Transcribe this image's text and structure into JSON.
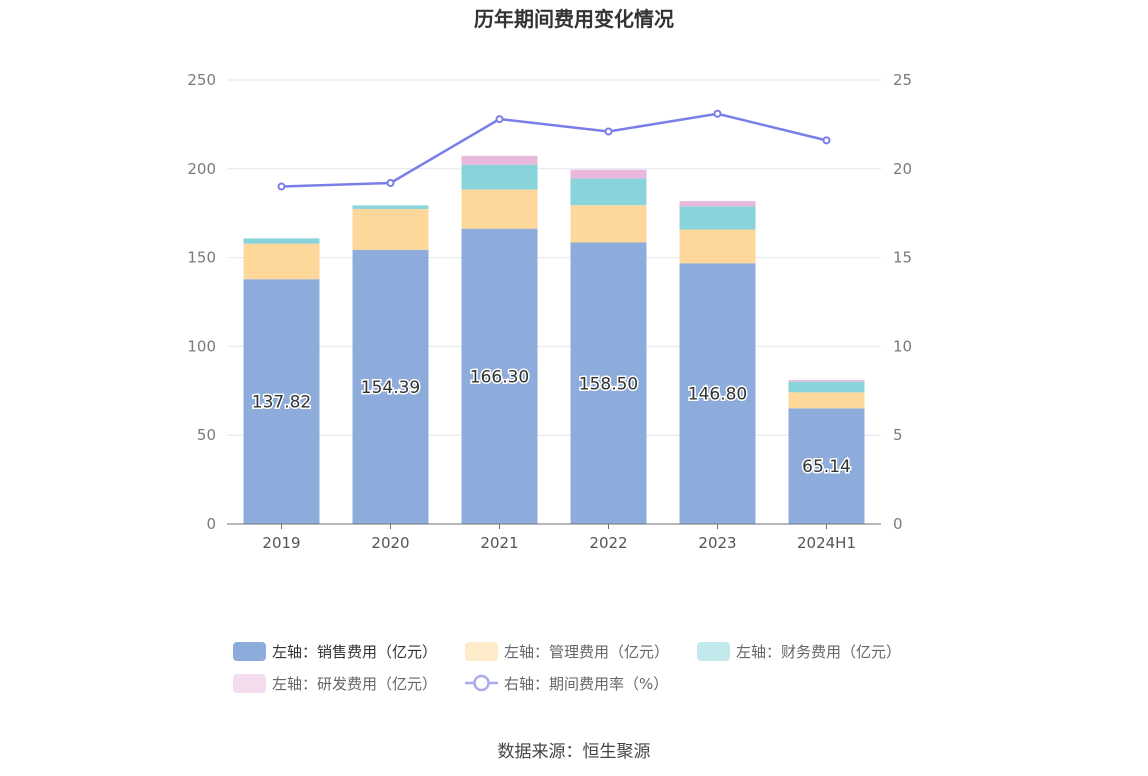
{
  "chart_data": {
    "type": "bar",
    "title": "历年期间费用变化情况",
    "categories": [
      "2019",
      "2020",
      "2021",
      "2022",
      "2023",
      "2024H1"
    ],
    "stacked": true,
    "ylim_left": [
      0,
      250
    ],
    "ylim_right": [
      0,
      25
    ],
    "yticks_left": [
      "0",
      "50",
      "100",
      "150",
      "200",
      "250"
    ],
    "yticks_right": [
      "0",
      "5",
      "10",
      "15",
      "20",
      "25"
    ],
    "grid": true,
    "legend_position": "bottom",
    "series": [
      {
        "name": "左轴：销售费用（亿元）",
        "type": "bar",
        "axis": "left",
        "color": "#8eacdb",
        "values": [
          137.82,
          154.39,
          166.3,
          158.5,
          146.8,
          65.14
        ],
        "labels": [
          "137.82",
          "154.39",
          "166.30",
          "158.50",
          "146.80",
          "65.14"
        ]
      },
      {
        "name": "左轴：管理费用（亿元）",
        "type": "bar",
        "axis": "left",
        "color": "#fdd89a",
        "values": [
          20,
          23,
          22,
          21,
          19,
          9
        ]
      },
      {
        "name": "左轴：财务费用（亿元）",
        "type": "bar",
        "axis": "left",
        "color": "#89d4da",
        "values": [
          3,
          2,
          14,
          15,
          13,
          6
        ]
      },
      {
        "name": "左轴：研发费用（亿元）",
        "type": "bar",
        "axis": "left",
        "color": "#e8b9dd",
        "values": [
          0,
          0,
          5,
          5,
          3,
          1
        ]
      },
      {
        "name": "右轴：期间费用率（%）",
        "type": "line",
        "axis": "right",
        "color": "#7a7ee8",
        "values": [
          19.0,
          19.2,
          22.8,
          22.1,
          23.1,
          21.6
        ]
      }
    ]
  },
  "legend_colors": {
    "sales_faded": "#8eacdb",
    "admin_faded": "#feebc9",
    "finance_faded": "#c2eaec",
    "rd_faded": "#f2dcee",
    "rate_faded": "#a9abef"
  },
  "source_text": "数据来源：恒生聚源"
}
